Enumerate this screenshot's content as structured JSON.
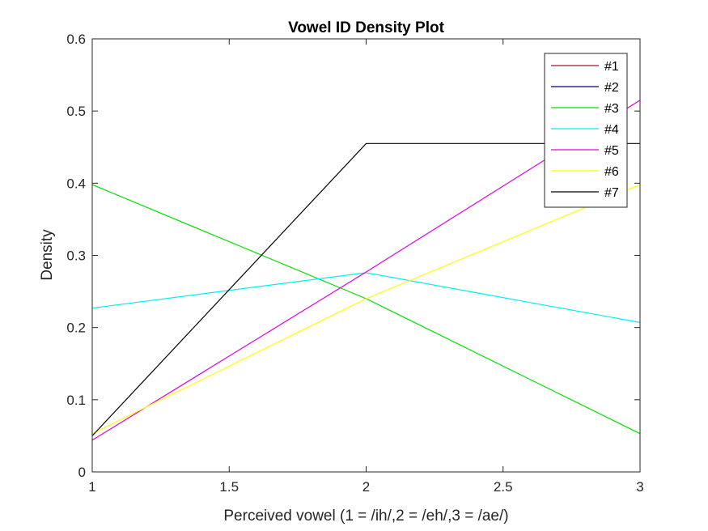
{
  "chart_data": {
    "type": "line",
    "title": "Vowel ID Density Plot",
    "xlabel": "Perceived vowel (1 = /ih/,2 = /eh/,3 = /ae/)",
    "ylabel": "Density",
    "xlim": [
      1,
      3
    ],
    "ylim": [
      0,
      0.6
    ],
    "xticks": [
      "1",
      "1.5",
      "2",
      "2.5",
      "3"
    ],
    "yticks": [
      "0",
      "0.1",
      "0.2",
      "0.3",
      "0.4",
      "0.5",
      "0.6"
    ],
    "grid": false,
    "legend_position": "top-right",
    "x": [
      1,
      2,
      3
    ],
    "series": [
      {
        "name": "#1",
        "color": "#a2142f",
        "values": [
          null,
          null,
          null
        ]
      },
      {
        "name": "#2",
        "color": "#00007f",
        "values": [
          null,
          null,
          null
        ]
      },
      {
        "name": "#3",
        "color": "#00e000",
        "values": [
          0.398,
          0.24,
          0.053
        ]
      },
      {
        "name": "#4",
        "color": "#00f0f0",
        "values": [
          0.227,
          0.276,
          0.207
        ]
      },
      {
        "name": "#5",
        "color": "#e000e0",
        "values": [
          0.044,
          0.277,
          0.515
        ]
      },
      {
        "name": "#6",
        "color": "#ffff00",
        "values": [
          0.053,
          0.24,
          0.398
        ]
      },
      {
        "name": "#7",
        "color": "#000000",
        "values": [
          0.05,
          0.455,
          0.455
        ]
      }
    ]
  }
}
